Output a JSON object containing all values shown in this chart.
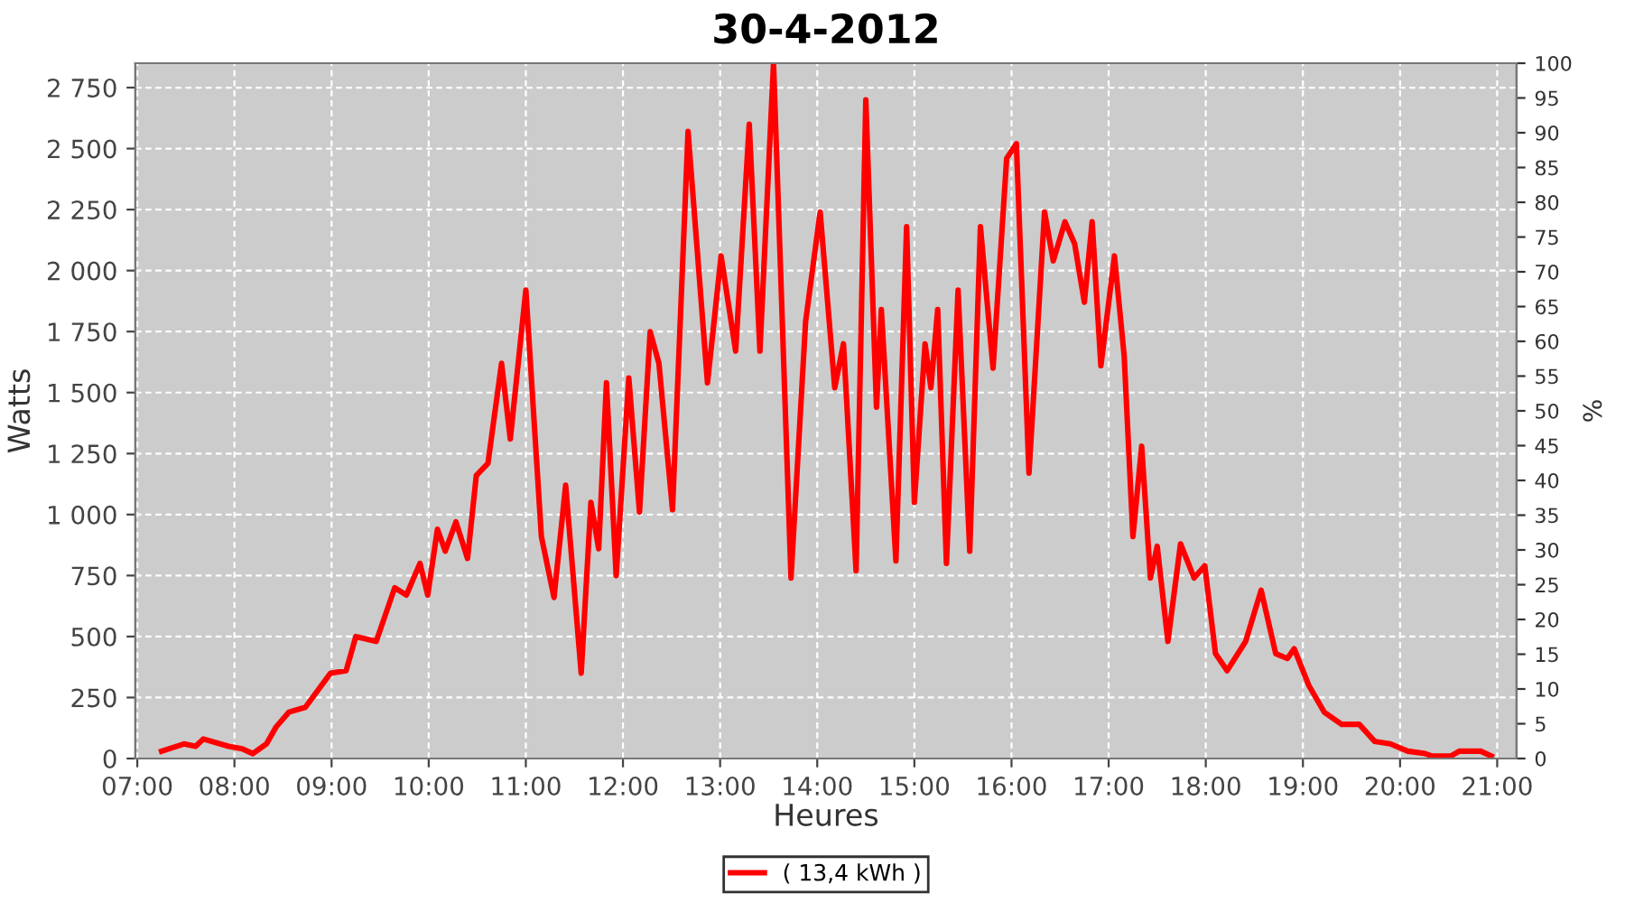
{
  "chart_data": {
    "type": "line",
    "title": "30-4-2012",
    "xlabel": "Heures",
    "ylabel": "Watts",
    "y2label": "%",
    "xlim": [
      6.98,
      21.2
    ],
    "xticks": [
      {
        "value": 7,
        "label": "07:00"
      },
      {
        "value": 8,
        "label": "08:00"
      },
      {
        "value": 9,
        "label": "09:00"
      },
      {
        "value": 10,
        "label": "10:00"
      },
      {
        "value": 11,
        "label": "11:00"
      },
      {
        "value": 12,
        "label": "12:00"
      },
      {
        "value": 13,
        "label": "13:00"
      },
      {
        "value": 14,
        "label": "14:00"
      },
      {
        "value": 15,
        "label": "15:00"
      },
      {
        "value": 16,
        "label": "16:00"
      },
      {
        "value": 17,
        "label": "17:00"
      },
      {
        "value": 18,
        "label": "18:00"
      },
      {
        "value": 19,
        "label": "19:00"
      },
      {
        "value": 20,
        "label": "20:00"
      },
      {
        "value": 21,
        "label": "21:00"
      }
    ],
    "ylim": [
      0,
      2850
    ],
    "yticks": [
      0,
      250,
      500,
      750,
      {
        "value": 1000,
        "label": "1 000"
      },
      {
        "value": 1250,
        "label": "1 250"
      },
      {
        "value": 1500,
        "label": "1 500"
      },
      {
        "value": 1750,
        "label": "1 750"
      },
      {
        "value": 2000,
        "label": "2 000"
      },
      {
        "value": 2250,
        "label": "2 250"
      },
      {
        "value": 2500,
        "label": "2 500"
      },
      {
        "value": 2750,
        "label": "2 750"
      }
    ],
    "y2lim": [
      0,
      100
    ],
    "y2ticks": [
      0,
      5,
      10,
      15,
      20,
      25,
      30,
      35,
      40,
      45,
      50,
      55,
      60,
      65,
      70,
      75,
      80,
      85,
      90,
      95,
      100
    ],
    "grid": true,
    "legend": "bottom",
    "marker": "none",
    "line_style": "solid",
    "series": [
      {
        "name": "( 13,4 kWh )",
        "color": "#ff0000",
        "x": [
          7.25,
          7.48,
          7.6,
          7.68,
          7.94,
          8.08,
          8.19,
          8.33,
          8.43,
          8.56,
          8.73,
          8.99,
          9.15,
          9.25,
          9.46,
          9.65,
          9.77,
          9.91,
          9.99,
          10.09,
          10.17,
          10.28,
          10.4,
          10.49,
          10.61,
          10.75,
          10.84,
          11.0,
          11.16,
          11.29,
          11.41,
          11.57,
          11.67,
          11.75,
          11.83,
          11.93,
          12.06,
          12.17,
          12.28,
          12.37,
          12.51,
          12.67,
          12.87,
          13.01,
          13.16,
          13.3,
          13.41,
          13.55,
          13.73,
          13.88,
          14.03,
          14.18,
          14.27,
          14.4,
          14.5,
          14.61,
          14.66,
          14.81,
          14.92,
          15.0,
          15.11,
          15.17,
          15.24,
          15.33,
          15.45,
          15.57,
          15.68,
          15.81,
          15.95,
          16.05,
          16.18,
          16.34,
          16.43,
          16.55,
          16.65,
          16.75,
          16.83,
          16.92,
          17.06,
          17.16,
          17.25,
          17.34,
          17.43,
          17.5,
          17.61,
          17.74,
          17.88,
          17.99,
          18.1,
          18.22,
          18.41,
          18.57,
          18.72,
          18.84,
          18.91,
          19.06,
          19.22,
          19.4,
          19.58,
          19.74,
          19.9,
          20.08,
          20.26,
          20.33,
          20.52,
          20.61,
          20.83,
          20.94
        ],
        "values": [
          30,
          60,
          50,
          80,
          50,
          40,
          20,
          60,
          130,
          190,
          210,
          350,
          360,
          500,
          480,
          700,
          670,
          800,
          670,
          940,
          850,
          970,
          820,
          1160,
          1210,
          1620,
          1310,
          1920,
          910,
          660,
          1120,
          350,
          1050,
          860,
          1540,
          750,
          1560,
          1010,
          1750,
          1620,
          1020,
          2570,
          1540,
          2060,
          1670,
          2600,
          1670,
          2850,
          740,
          1790,
          2240,
          1520,
          1700,
          770,
          2700,
          1440,
          1840,
          810,
          2180,
          1050,
          1700,
          1520,
          1840,
          800,
          1920,
          850,
          2180,
          1600,
          2460,
          2520,
          1170,
          2240,
          2040,
          2200,
          2110,
          1870,
          2200,
          1610,
          2060,
          1650,
          910,
          1280,
          740,
          870,
          480,
          880,
          740,
          790,
          430,
          360,
          480,
          690,
          430,
          410,
          450,
          300,
          190,
          140,
          140,
          70,
          60,
          30,
          20,
          10,
          10,
          30,
          30,
          10
        ]
      }
    ]
  }
}
